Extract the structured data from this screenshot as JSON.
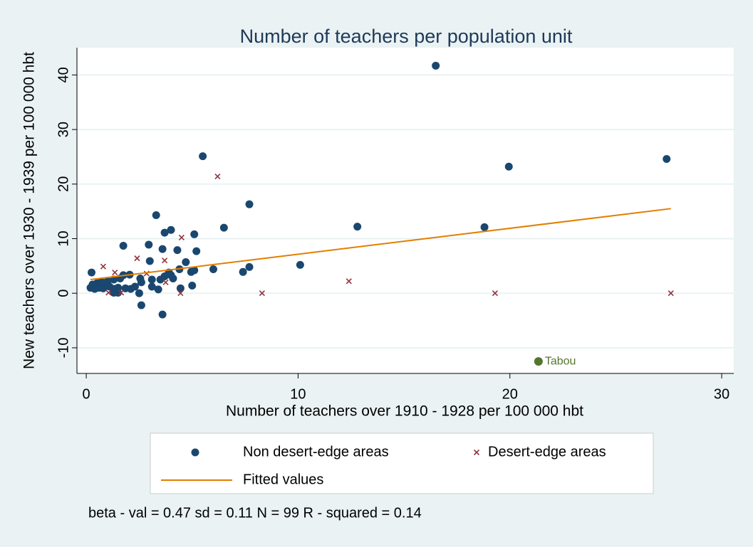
{
  "chart_data": {
    "type": "scatter",
    "title": "Number of teachers per population unit",
    "x_label": "Number of teachers over 1910 - 1928 per 100 000 hbt",
    "y_label": "New teachers over 1930 - 1939 per 100 000 hbt",
    "note": "beta - val = 0.47 sd = 0.11 N = 99 R - squared = 0.14",
    "xlim": [
      -0.44,
      30.57
    ],
    "ylim": [
      -14.7,
      45
    ],
    "xticks": [
      0,
      10,
      20,
      30
    ],
    "yticks": [
      -10,
      0,
      10,
      20,
      30,
      40
    ],
    "grid": true,
    "series": [
      {
        "name": "Non desert-edge areas",
        "color": "#1a476f",
        "marker": "circle",
        "x": [
          16.5,
          5.5,
          27.4,
          19.95,
          7.7,
          3.3,
          12.8,
          18.8,
          6.5,
          4.0,
          3.7,
          5.1,
          1.75,
          2.95,
          3.6,
          4.3,
          5.2,
          3.0,
          4.7,
          10.1,
          7.7,
          6.0,
          7.4,
          0.25,
          5.1,
          4.95,
          4.4,
          3.9,
          4.0,
          4.1,
          3.7,
          3.5,
          3.1,
          2.55,
          2.05,
          1.75,
          1.6,
          1.3,
          1.0,
          0.7,
          0.5,
          0.3,
          0.2,
          0.4,
          0.6,
          0.8,
          1.1,
          1.3,
          1.5,
          1.85,
          2.1,
          2.3,
          1.3,
          1.5,
          2.5,
          3.1,
          3.4,
          4.45,
          5.0,
          2.6,
          3.6,
          0.85,
          2.6
        ],
        "values": [
          41.7,
          25.1,
          24.6,
          23.2,
          16.3,
          14.3,
          12.2,
          12.1,
          12.0,
          11.6,
          11.1,
          10.8,
          8.7,
          8.9,
          8.1,
          7.9,
          7.7,
          5.9,
          5.7,
          5.2,
          4.8,
          4.4,
          3.9,
          3.8,
          4.2,
          3.9,
          4.4,
          3.8,
          3.3,
          2.7,
          3.1,
          2.5,
          2.5,
          2.7,
          3.4,
          3.3,
          2.7,
          2.5,
          2.2,
          2.1,
          1.8,
          1.6,
          1.0,
          0.8,
          1.0,
          0.9,
          1.2,
          0.8,
          1.0,
          0.9,
          0.8,
          1.2,
          0.1,
          0.1,
          0.0,
          1.2,
          0.7,
          0.9,
          1.4,
          -2.2,
          -3.9,
          1.8,
          2.0
        ]
      },
      {
        "name": "Desert-edge areas",
        "color": "#90353b",
        "marker": "x",
        "x": [
          6.2,
          4.5,
          2.4,
          0.8,
          3.7,
          1.35,
          2.85,
          12.4,
          3.75,
          1.05,
          1.65,
          4.45,
          8.3,
          19.3,
          27.6
        ],
        "values": [
          21.4,
          10.2,
          6.4,
          4.9,
          6.0,
          3.8,
          3.6,
          2.2,
          2.0,
          0.1,
          0.1,
          0.0,
          0.0,
          0.0,
          0.0
        ]
      },
      {
        "name": "Fitted values",
        "color": "#e37e00",
        "marker": "line",
        "x": [
          0.2,
          27.6
        ],
        "values": [
          2.5,
          15.5
        ]
      }
    ],
    "annotations": [
      {
        "text": "Tabou",
        "x": 21.35,
        "y": -12.5,
        "color": "#55752f"
      }
    ]
  }
}
